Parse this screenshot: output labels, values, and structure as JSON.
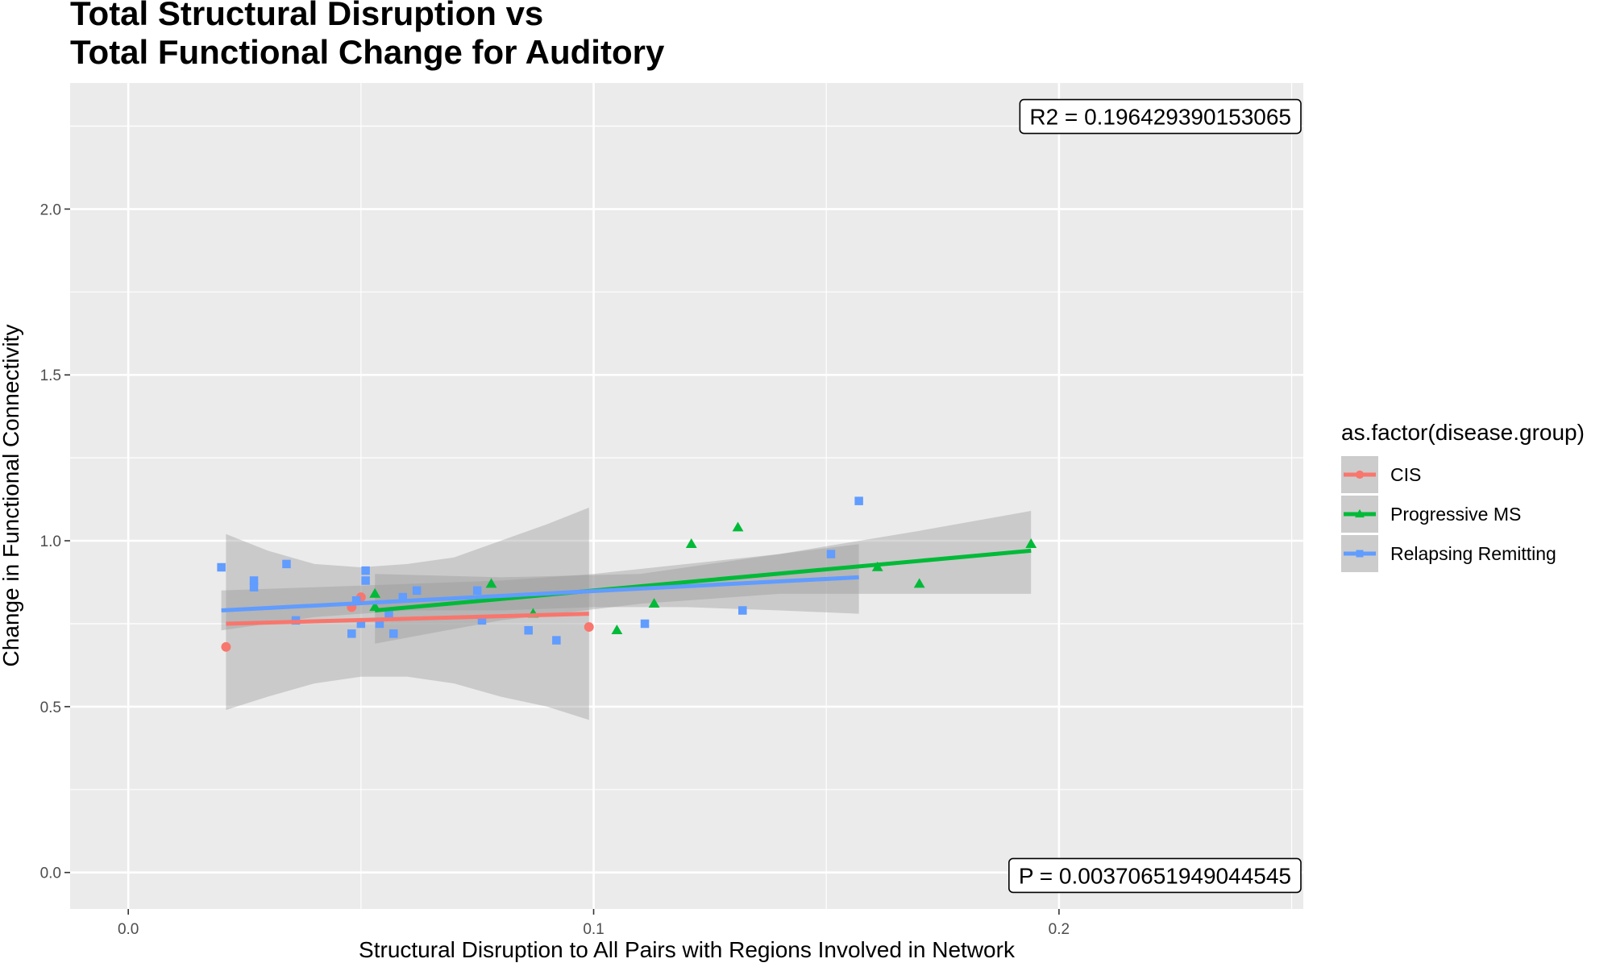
{
  "chart_data": {
    "type": "scatter",
    "title": [
      "Total Structural Disruption vs",
      "Total Functional Change for Auditory"
    ],
    "xlabel": "Structural Disruption to All Pairs with Regions Involved in Network",
    "ylabel": "Change in Functional Connectivity",
    "xlim": [
      -0.0125,
      0.2525
    ],
    "ylim": [
      -0.11,
      2.38
    ],
    "x_ticks": [
      0.0,
      0.1,
      0.2
    ],
    "x_tick_labels": [
      "0.0",
      "0.1",
      "0.2"
    ],
    "y_ticks": [
      0.0,
      0.5,
      1.0,
      1.5,
      2.0
    ],
    "y_tick_labels": [
      "0.0",
      "0.5",
      "1.0",
      "1.5",
      "2.0"
    ],
    "grid": true,
    "legend": {
      "title": "as.factor(disease.group)",
      "placement": "right"
    },
    "annotations": [
      {
        "text": "R2 =  0.196429390153065",
        "x": 0.2,
        "y": 2.33,
        "anchor": "top-right"
      },
      {
        "text": "P =  0.00370651949044545",
        "x": 0.2,
        "y": -0.06,
        "anchor": "bottom-right"
      }
    ],
    "series": [
      {
        "name": "CIS",
        "color": "#F8766D",
        "marker": "circle",
        "points": [
          [
            0.021,
            0.68
          ],
          [
            0.048,
            0.8
          ],
          [
            0.05,
            0.83
          ],
          [
            0.099,
            0.74
          ]
        ],
        "fit_line": [
          [
            0.021,
            0.75
          ],
          [
            0.099,
            0.78
          ]
        ],
        "ci_band": [
          [
            0.021,
            0.49,
            1.02
          ],
          [
            0.03,
            0.53,
            0.97
          ],
          [
            0.04,
            0.57,
            0.93
          ],
          [
            0.05,
            0.59,
            0.92
          ],
          [
            0.06,
            0.59,
            0.93
          ],
          [
            0.07,
            0.57,
            0.95
          ],
          [
            0.08,
            0.53,
            1.0
          ],
          [
            0.09,
            0.5,
            1.05
          ],
          [
            0.099,
            0.46,
            1.1
          ]
        ]
      },
      {
        "name": "Progressive MS",
        "color": "#00BA38",
        "marker": "triangle",
        "points": [
          [
            0.053,
            0.84
          ],
          [
            0.053,
            0.8
          ],
          [
            0.078,
            0.87
          ],
          [
            0.087,
            0.78
          ],
          [
            0.105,
            0.73
          ],
          [
            0.113,
            0.81
          ],
          [
            0.121,
            0.99
          ],
          [
            0.131,
            1.04
          ],
          [
            0.161,
            0.92
          ],
          [
            0.17,
            0.87
          ],
          [
            0.194,
            0.99
          ]
        ],
        "fit_line": [
          [
            0.053,
            0.79
          ],
          [
            0.194,
            0.97
          ]
        ],
        "ci_band": [
          [
            0.053,
            0.69,
            0.9
          ],
          [
            0.08,
            0.76,
            0.89
          ],
          [
            0.11,
            0.81,
            0.9
          ],
          [
            0.14,
            0.84,
            0.96
          ],
          [
            0.17,
            0.84,
            1.03
          ],
          [
            0.194,
            0.84,
            1.09
          ]
        ]
      },
      {
        "name": "Relapsing Remitting",
        "color": "#619CFF",
        "marker": "square",
        "points": [
          [
            0.02,
            0.92
          ],
          [
            0.027,
            0.86
          ],
          [
            0.027,
            0.88
          ],
          [
            0.034,
            0.93
          ],
          [
            0.036,
            0.76
          ],
          [
            0.048,
            0.72
          ],
          [
            0.049,
            0.82
          ],
          [
            0.05,
            0.75
          ],
          [
            0.051,
            0.91
          ],
          [
            0.051,
            0.88
          ],
          [
            0.054,
            0.75
          ],
          [
            0.056,
            0.78
          ],
          [
            0.057,
            0.72
          ],
          [
            0.059,
            0.83
          ],
          [
            0.062,
            0.85
          ],
          [
            0.075,
            0.85
          ],
          [
            0.076,
            0.76
          ],
          [
            0.086,
            0.73
          ],
          [
            0.092,
            0.7
          ],
          [
            0.111,
            0.75
          ],
          [
            0.132,
            0.79
          ],
          [
            0.151,
            0.96
          ],
          [
            0.157,
            1.12
          ]
        ],
        "fit_line": [
          [
            0.02,
            0.79
          ],
          [
            0.157,
            0.89
          ]
        ],
        "ci_band": [
          [
            0.02,
            0.73,
            0.85
          ],
          [
            0.04,
            0.77,
            0.86
          ],
          [
            0.06,
            0.79,
            0.87
          ],
          [
            0.08,
            0.79,
            0.88
          ],
          [
            0.1,
            0.8,
            0.9
          ],
          [
            0.12,
            0.8,
            0.93
          ],
          [
            0.14,
            0.79,
            0.96
          ],
          [
            0.157,
            0.78,
            0.99
          ]
        ]
      }
    ]
  }
}
